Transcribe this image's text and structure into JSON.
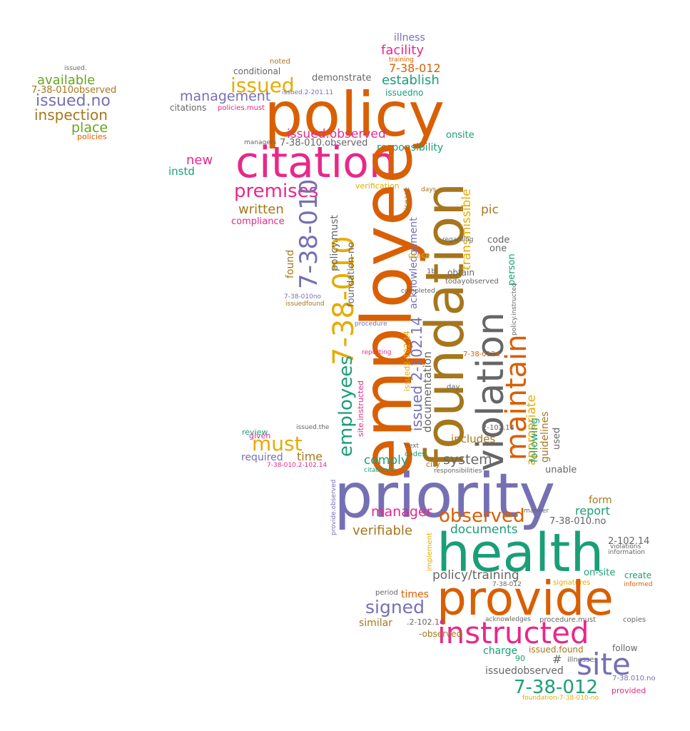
{
  "palette": {
    "orange": "#d95f02",
    "teal": "#1b9e77",
    "purple": "#7570b3",
    "pink": "#e7298a",
    "green": "#66a61e",
    "gold": "#e6ab02",
    "brown": "#a6761d",
    "gray": "#666666"
  },
  "words": {
    "policy": "policy",
    "citation": "citation",
    "employee": "employee",
    "foundation": "foundation",
    "priority": "priority",
    "health": "health",
    "provide": "provide",
    "instructed": "instructed",
    "violation": "violation",
    "maintain": "maintain",
    "site": "site",
    "must": "must",
    "issued": "issued",
    "premises": "premises",
    "code_7_38_010": "7-38-010",
    "code_7_38_012": "7-38-012",
    "code_2_102_14": "2-102.14",
    "issued_2_102_14": "issued 2-102.14",
    "employees": "employees",
    "observed": "observed",
    "signed": "signed",
    "documents": "documents",
    "facility": "facility",
    "establish": "establish",
    "management": "management",
    "new": "new",
    "written": "written",
    "compliance": "compliance",
    "transmissible": "transmissible",
    "acknowledgement": "acknowledgement",
    "issued_observed": "issued.observed",
    "issued_no": "issued.no",
    "inspection": "inspection",
    "available": "available",
    "place": "place",
    "policies": "policies",
    "demonstrate": "demonstrate",
    "conditional": "conditional",
    "illness": "illness",
    "responsibility": "responsibility",
    "onsite": "onsite",
    "verification": "verification",
    "pic": "pic",
    "code": "code",
    "one": "one",
    "person": "person",
    "appropriate": "appropriate",
    "guidelines": "guidelines",
    "following": "following",
    "used": "used",
    "unable": "unable",
    "comply": "comply",
    "system": "system",
    "includes": "includes",
    "time": "time",
    "required": "required",
    "review": "review",
    "manager": "manager",
    "verifiable": "verifiable",
    "report": "report",
    "form": "form",
    "policy_training": "policy/training",
    "similar": "similar",
    "charge": "charge",
    "issued_found": "issued.found",
    "issuedobserved": "issuedobserved",
    "follow": "follow",
    "provided": "provided",
    "on_site": "on-site",
    "create": "create",
    "information": "information",
    "violations": "violations",
    "copies": "copies",
    "illnesses": "illnesses",
    "hash": "#",
    "ninety": "90",
    "times": "times",
    "period": "period",
    "signatures": "signatures",
    "informed": "informed",
    "policy_must": "policy.must",
    "found": "found",
    "instd": "instd",
    "citations": "citations",
    "managers": "managers",
    "issuedno": "issuedno",
    "code_7_38_010_observed": "7-38-010.observed",
    "code_7_38_010_no": "7-38-010.no",
    "foundation_no": "foundation-no",
    "documentation": "documentation",
    "obtain": "obtain",
    "todayobserved": "todayobserved",
    "reporting": "reporting",
    "procedure": "procedure",
    "city": "city",
    "codes": "codes",
    "next": "next",
    "day": "day",
    "site_instructed": "site.instructed",
    "issued2_102_14": "issued2-102.14",
    "completed": "completed",
    "disease": "disease",
    "days": "days",
    "grace": "grace",
    "regarding": "regarding",
    "given": "given",
    "noted": "noted",
    "training": "training",
    "issued_the": "issued.the",
    "citationno": "citationno",
    "responsibilities": "responsibilities",
    "manner": "manner",
    "implement": "implement",
    "acknowledges": "acknowledges",
    "procedure_must": "procedure.must",
    "observed_dash": "-observed",
    "code_7_38_012a": "7-38-012a",
    "issued_2_201_11": "issued.2-201.11",
    "code_7_38_010observed": "7-38-010observed",
    "issuedfound": "issuedfound",
    "code_7_38_010no": "7-38-010no",
    "small_issued": "issued.",
    "issued_dot_no": "issued.no",
    "foundation_7_38_010_no": "foundation-7-38-010-no",
    "policy_instructed": "policy.instructed",
    "code_7_38_010_no_small": "7-38.010.no",
    "provide_observed": "provide.observed",
    "dot_2_102_14": ".2-102.14",
    "policies_must": "policies.must",
    "code_7_38_012_small": "7-38-012",
    "code_7_38_010_2_102_14": "7-38-010.2-102.14",
    "b1": "1b",
    "minus_2_102_14": "-2-102.14",
    "number_2_102_14_small": "2-102.14",
    "issued_2_102_14_small": "issued.2-102.14"
  }
}
